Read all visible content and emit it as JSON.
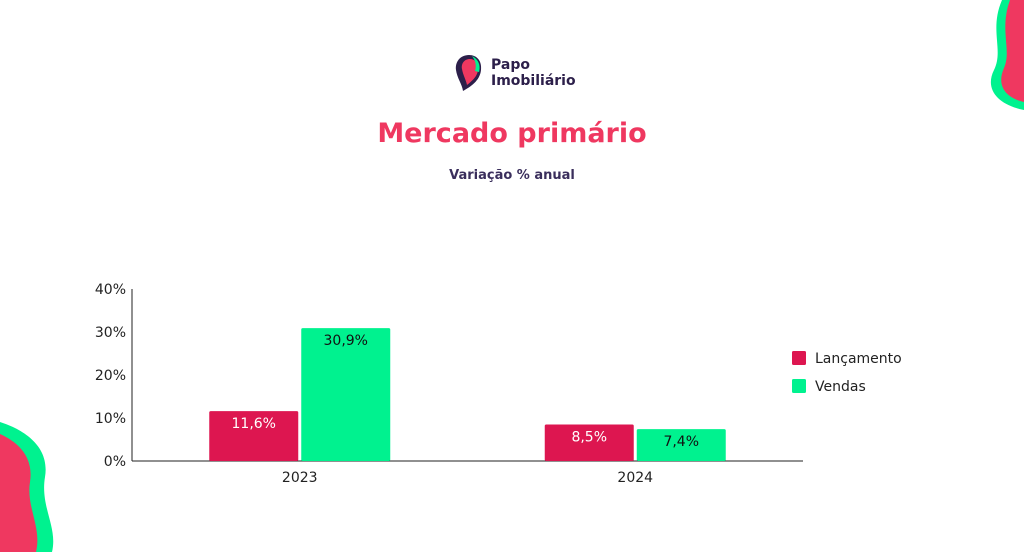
{
  "logo": {
    "line1": "Papo",
    "line2": "Imobiliário"
  },
  "title": "Mercado primário",
  "subtitle": "Variação % anual",
  "colors": {
    "lancamento": "#dd1650",
    "vendas": "#00f28f",
    "title": "#ef3860",
    "text_dark": "#3a2e5c"
  },
  "chart_data": {
    "type": "bar",
    "categories": [
      "2023",
      "2024"
    ],
    "series": [
      {
        "name": "Lançamento",
        "values": [
          11.6,
          8.5
        ],
        "labels": [
          "11,6%",
          "8,5%"
        ]
      },
      {
        "name": "Vendas",
        "values": [
          30.9,
          7.4
        ],
        "labels": [
          "30,9%",
          "7,4%"
        ]
      }
    ],
    "y_ticks": [
      "0%",
      "10%",
      "20%",
      "30%",
      "40%"
    ],
    "ylim": [
      0,
      40
    ],
    "legend_position": "right",
    "grid": false
  }
}
